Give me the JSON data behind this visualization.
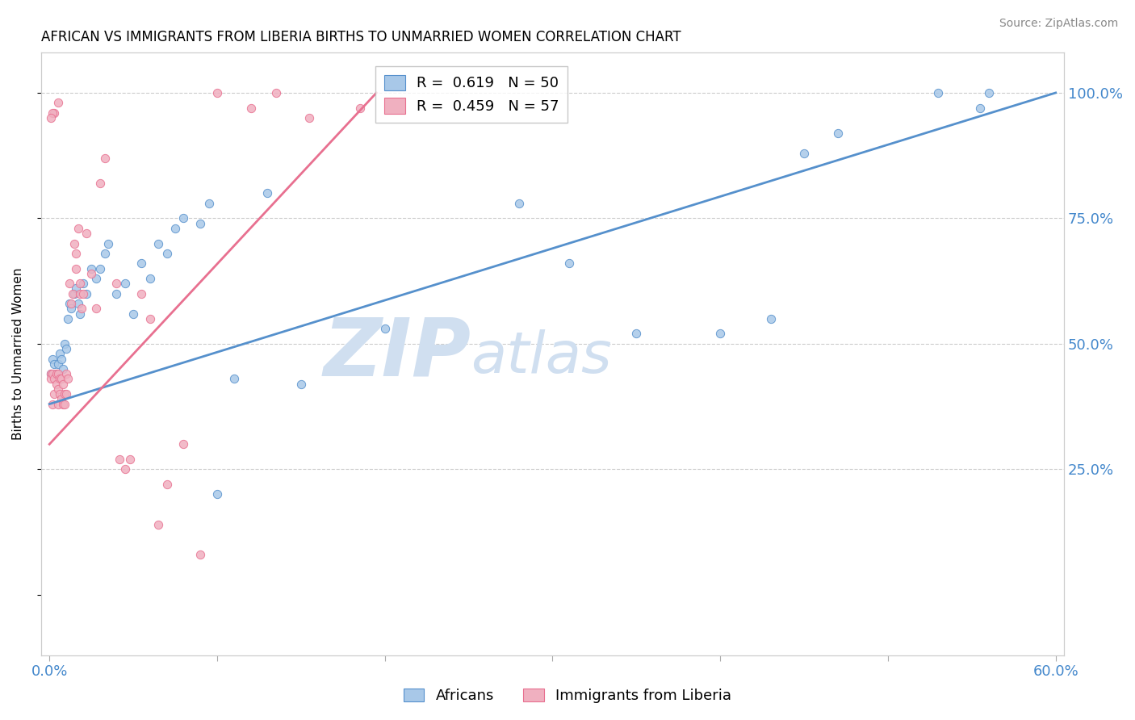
{
  "title": "AFRICAN VS IMMIGRANTS FROM LIBERIA BIRTHS TO UNMARRIED WOMEN CORRELATION CHART",
  "source": "Source: ZipAtlas.com",
  "ylabel": "Births to Unmarried Women",
  "xlim": [
    -0.005,
    0.605
  ],
  "ylim": [
    -0.12,
    1.08
  ],
  "blue_R": 0.619,
  "blue_N": 50,
  "pink_R": 0.459,
  "pink_N": 57,
  "blue_color": "#A8C8E8",
  "pink_color": "#F0B0C0",
  "blue_line_color": "#5590CC",
  "pink_line_color": "#E87090",
  "grid_color": "#CCCCCC",
  "axis_color": "#4488CC",
  "watermark_ZIP": "ZIP",
  "watermark_atlas": "atlas",
  "watermark_color": "#D0DFF0",
  "blue_line_x0": 0.0,
  "blue_line_y0": 0.38,
  "blue_line_x1": 0.6,
  "blue_line_y1": 1.0,
  "pink_line_x0": 0.0,
  "pink_line_y0": 0.3,
  "pink_line_x1": 0.195,
  "pink_line_y1": 1.0,
  "blue_x": [
    0.001,
    0.002,
    0.003,
    0.004,
    0.005,
    0.006,
    0.007,
    0.008,
    0.009,
    0.01,
    0.011,
    0.012,
    0.013,
    0.015,
    0.016,
    0.017,
    0.018,
    0.02,
    0.022,
    0.025,
    0.028,
    0.03,
    0.033,
    0.035,
    0.04,
    0.045,
    0.05,
    0.055,
    0.06,
    0.065,
    0.07,
    0.075,
    0.08,
    0.09,
    0.095,
    0.1,
    0.11,
    0.13,
    0.15,
    0.2,
    0.28,
    0.31,
    0.35,
    0.4,
    0.43,
    0.45,
    0.47,
    0.53,
    0.555,
    0.56
  ],
  "blue_y": [
    0.44,
    0.47,
    0.46,
    0.44,
    0.46,
    0.48,
    0.47,
    0.45,
    0.5,
    0.49,
    0.55,
    0.58,
    0.57,
    0.6,
    0.61,
    0.58,
    0.56,
    0.62,
    0.6,
    0.65,
    0.63,
    0.65,
    0.68,
    0.7,
    0.6,
    0.62,
    0.56,
    0.66,
    0.63,
    0.7,
    0.68,
    0.73,
    0.75,
    0.74,
    0.78,
    0.2,
    0.43,
    0.8,
    0.42,
    0.53,
    0.78,
    0.66,
    0.52,
    0.52,
    0.55,
    0.88,
    0.92,
    1.0,
    0.97,
    1.0
  ],
  "pink_x": [
    0.001,
    0.001,
    0.002,
    0.002,
    0.003,
    0.003,
    0.004,
    0.004,
    0.005,
    0.005,
    0.005,
    0.006,
    0.006,
    0.007,
    0.007,
    0.008,
    0.008,
    0.009,
    0.009,
    0.01,
    0.01,
    0.011,
    0.012,
    0.013,
    0.014,
    0.015,
    0.016,
    0.016,
    0.017,
    0.018,
    0.018,
    0.019,
    0.02,
    0.022,
    0.025,
    0.028,
    0.03,
    0.033,
    0.04,
    0.042,
    0.045,
    0.048,
    0.055,
    0.06,
    0.065,
    0.07,
    0.08,
    0.09,
    0.1,
    0.12,
    0.135,
    0.155,
    0.185,
    0.005,
    0.003,
    0.002,
    0.001
  ],
  "pink_y": [
    0.44,
    0.43,
    0.44,
    0.38,
    0.43,
    0.4,
    0.44,
    0.42,
    0.41,
    0.38,
    0.44,
    0.43,
    0.4,
    0.43,
    0.39,
    0.42,
    0.38,
    0.4,
    0.38,
    0.44,
    0.4,
    0.43,
    0.62,
    0.58,
    0.6,
    0.7,
    0.65,
    0.68,
    0.73,
    0.62,
    0.6,
    0.57,
    0.6,
    0.72,
    0.64,
    0.57,
    0.82,
    0.87,
    0.62,
    0.27,
    0.25,
    0.27,
    0.6,
    0.55,
    0.14,
    0.22,
    0.3,
    0.08,
    1.0,
    0.97,
    1.0,
    0.95,
    0.97,
    0.98,
    0.96,
    0.96,
    0.95
  ]
}
